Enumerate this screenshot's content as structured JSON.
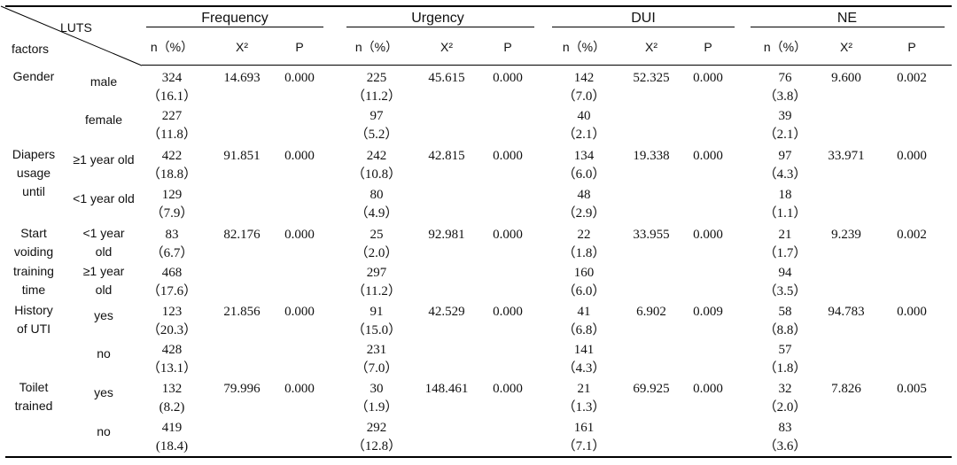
{
  "corner": {
    "row_label": "factors",
    "col_label": "LUTS"
  },
  "groups": [
    "Frequency",
    "Urgency",
    "DUI",
    "NE"
  ],
  "subheaders": [
    "n（%）",
    "Χ²",
    "P"
  ],
  "rows": [
    {
      "factor": [
        "Gender"
      ],
      "level": [
        "male"
      ],
      "cells": [
        [
          "324",
          "（16.1）"
        ],
        [
          "14.693"
        ],
        [
          "0.000"
        ],
        [
          "225",
          "（11.2）"
        ],
        [
          "45.615"
        ],
        [
          "0.000"
        ],
        [
          "142",
          "（7.0）"
        ],
        [
          "52.325"
        ],
        [
          "0.000"
        ],
        [
          "76",
          "（3.8）"
        ],
        [
          "9.600"
        ],
        [
          "0.002"
        ]
      ]
    },
    {
      "factor": [],
      "level": [
        "female"
      ],
      "cells": [
        [
          "227",
          "（11.8）"
        ],
        [],
        [],
        [
          "97",
          "（5.2）"
        ],
        [],
        [],
        [
          "40",
          "（2.1）"
        ],
        [],
        [],
        [
          "39",
          "（2.1）"
        ],
        [],
        []
      ]
    },
    {
      "factor": [
        "Diapers",
        "usage",
        "until"
      ],
      "level": [
        "≥1 year old"
      ],
      "cells": [
        [
          "422",
          "（18.8）"
        ],
        [
          "91.851"
        ],
        [
          "0.000"
        ],
        [
          "242",
          "（10.8）"
        ],
        [
          "42.815"
        ],
        [
          "0.000"
        ],
        [
          "134",
          "（6.0）"
        ],
        [
          "19.338"
        ],
        [
          "0.000"
        ],
        [
          "97",
          "（4.3）"
        ],
        [
          "33.971"
        ],
        [
          "0.000"
        ]
      ]
    },
    {
      "factor": [],
      "level": [
        "<1 year old"
      ],
      "cells": [
        [
          "129",
          "（7.9）"
        ],
        [],
        [],
        [
          "80",
          "（4.9）"
        ],
        [],
        [],
        [
          "48",
          "（2.9）"
        ],
        [],
        [],
        [
          "18",
          "（1.1）"
        ],
        [],
        []
      ]
    },
    {
      "factor": [
        "Start",
        "voiding"
      ],
      "level": [
        "<1 year",
        "old"
      ],
      "cells": [
        [
          "83",
          "（6.7）"
        ],
        [
          "82.176"
        ],
        [
          "0.000"
        ],
        [
          "25",
          "（2.0）"
        ],
        [
          "92.981"
        ],
        [
          "0.000"
        ],
        [
          "22",
          "（1.8）"
        ],
        [
          "33.955"
        ],
        [
          "0.000"
        ],
        [
          "21",
          "（1.7）"
        ],
        [
          "9.239"
        ],
        [
          "0.002"
        ]
      ]
    },
    {
      "factor": [
        "training",
        "time"
      ],
      "level": [
        "≥1 year",
        "old"
      ],
      "cells": [
        [
          "468",
          "（17.6）"
        ],
        [],
        [],
        [
          "297",
          "（11.2）"
        ],
        [],
        [],
        [
          "160",
          "（6.0）"
        ],
        [],
        [],
        [
          "94",
          "（3.5）"
        ],
        [],
        []
      ]
    },
    {
      "factor": [
        "History",
        "of UTI"
      ],
      "level": [
        "yes"
      ],
      "cells": [
        [
          "123",
          "（20.3）"
        ],
        [
          "21.856"
        ],
        [
          "0.000"
        ],
        [
          "91",
          "（15.0）"
        ],
        [
          "42.529"
        ],
        [
          "0.000"
        ],
        [
          "41",
          "（6.8）"
        ],
        [
          "6.902"
        ],
        [
          "0.009"
        ],
        [
          "58",
          "（8.8）"
        ],
        [
          "94.783"
        ],
        [
          "0.000"
        ]
      ]
    },
    {
      "factor": [],
      "level": [
        "no"
      ],
      "cells": [
        [
          "428",
          "（13.1）"
        ],
        [],
        [],
        [
          "231",
          "（7.0）"
        ],
        [],
        [],
        [
          "141",
          "（4.3）"
        ],
        [],
        [],
        [
          "57",
          "（1.8）"
        ],
        [],
        []
      ]
    },
    {
      "factor": [
        "Toilet",
        "trained"
      ],
      "level": [
        "yes"
      ],
      "cells": [
        [
          "132",
          "(8.2)"
        ],
        [
          "79.996"
        ],
        [
          "0.000"
        ],
        [
          "30",
          "（1.9）"
        ],
        [
          "148.461"
        ],
        [
          "0.000"
        ],
        [
          "21",
          "（1.3）"
        ],
        [
          "69.925"
        ],
        [
          "0.000"
        ],
        [
          "32",
          "（2.0）"
        ],
        [
          "7.826"
        ],
        [
          "0.005"
        ]
      ]
    },
    {
      "factor": [],
      "level": [
        "no"
      ],
      "cells": [
        [
          "419",
          "(18.4)"
        ],
        [],
        [],
        [
          "292",
          "（12.8）"
        ],
        [],
        [],
        [
          "161",
          "（7.1）"
        ],
        [],
        [],
        [
          "83",
          "（3.6）"
        ],
        [],
        []
      ]
    }
  ]
}
